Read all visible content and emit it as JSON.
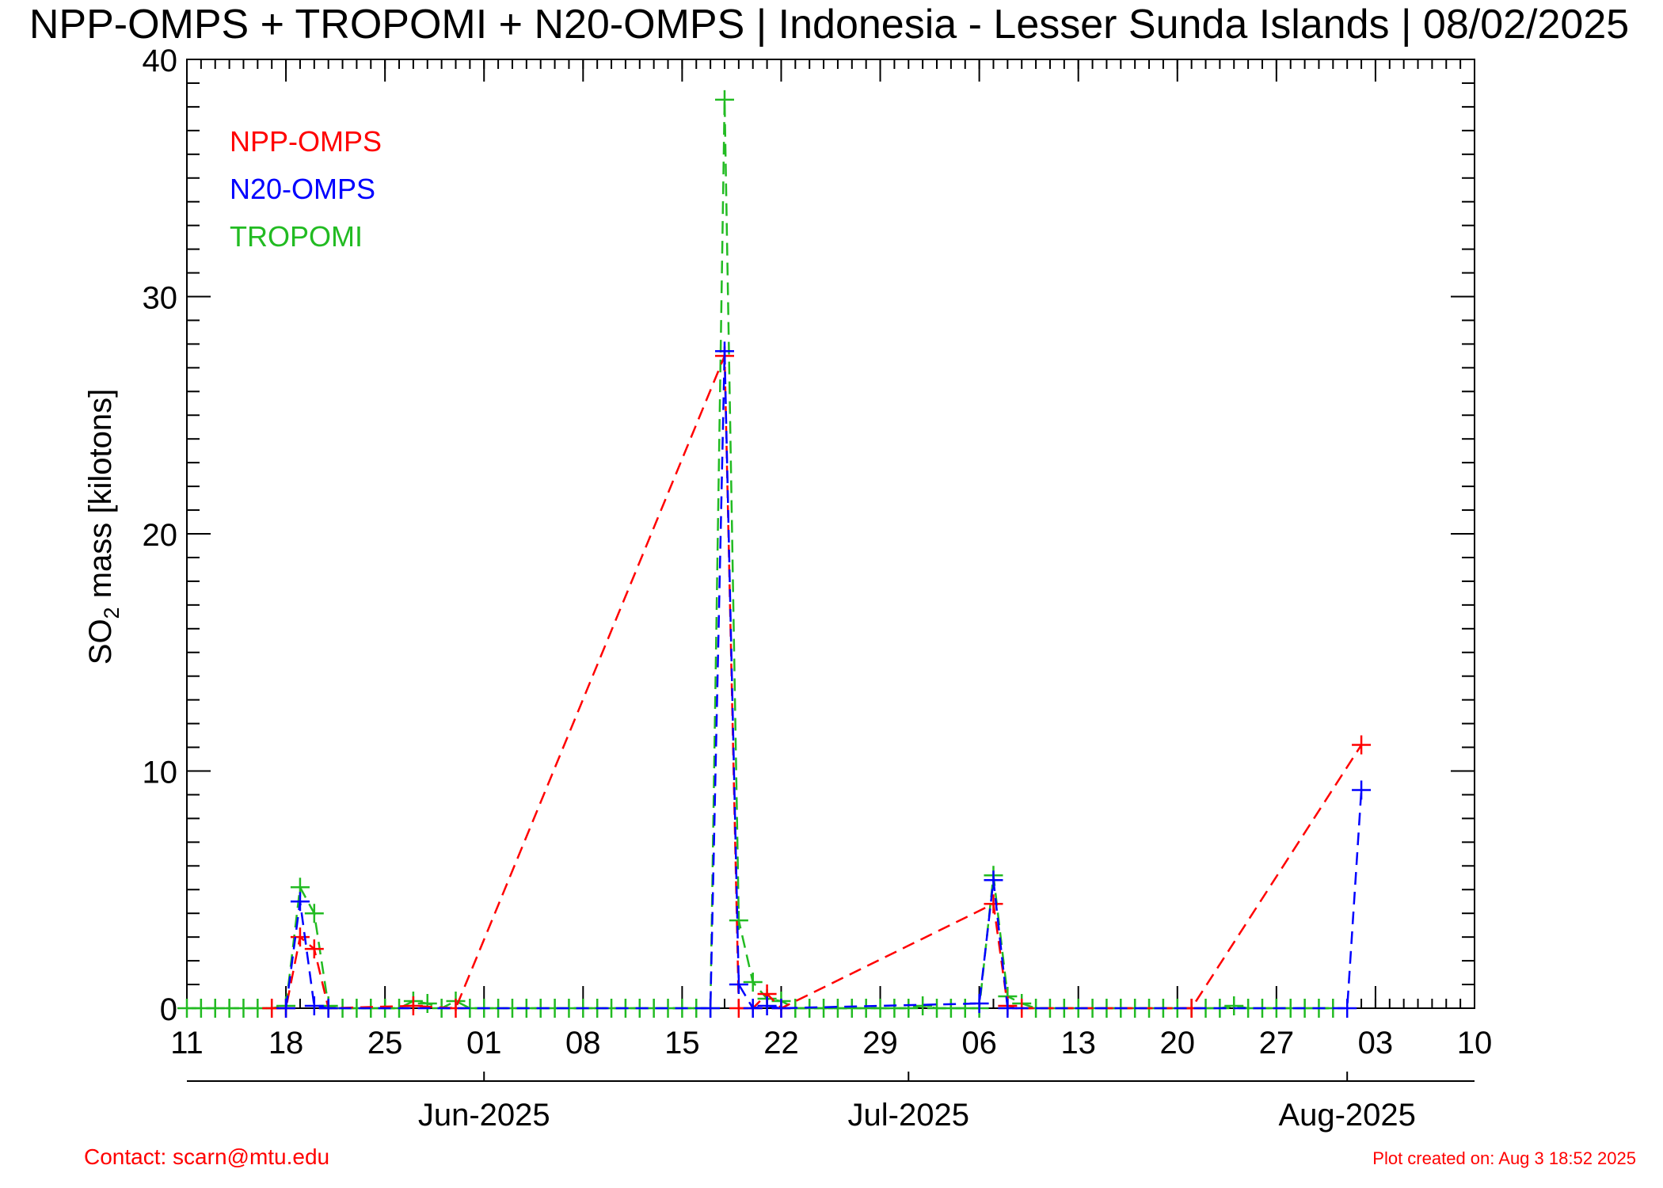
{
  "chart_data": {
    "type": "line",
    "title": "NPP-OMPS + TROPOMI + N20-OMPS | Indonesia - Lesser Sunda Islands | 08/02/2025",
    "ylabel_main": "SO",
    "ylabel_sub": "2",
    "ylabel_rest": " mass [kilotons]",
    "ylim": [
      0,
      40
    ],
    "y_ticks": [
      "0",
      "10",
      "20",
      "30",
      "40"
    ],
    "x_range": [
      "2025-05-11",
      "2025-08-10"
    ],
    "x_day_ticks": [
      {
        "date": "2025-05-11",
        "label": "11"
      },
      {
        "date": "2025-05-18",
        "label": "18"
      },
      {
        "date": "2025-05-25",
        "label": "25"
      },
      {
        "date": "2025-06-01",
        "label": "01"
      },
      {
        "date": "2025-06-08",
        "label": "08"
      },
      {
        "date": "2025-06-15",
        "label": "15"
      },
      {
        "date": "2025-06-22",
        "label": "22"
      },
      {
        "date": "2025-06-29",
        "label": "29"
      },
      {
        "date": "2025-07-06",
        "label": "06"
      },
      {
        "date": "2025-07-13",
        "label": "13"
      },
      {
        "date": "2025-07-20",
        "label": "20"
      },
      {
        "date": "2025-07-27",
        "label": "27"
      },
      {
        "date": "2025-08-03",
        "label": "03"
      },
      {
        "date": "2025-08-10",
        "label": "10"
      }
    ],
    "x_month_ticks": [
      {
        "date": "2025-06-01",
        "label": "Jun-2025"
      },
      {
        "date": "2025-07-01",
        "label": "Jul-2025"
      },
      {
        "date": "2025-08-01",
        "label": "Aug-2025"
      }
    ],
    "legend_position": "top-left",
    "grid": false,
    "series": [
      {
        "name": "NPP-OMPS",
        "color": "#ff0000",
        "points": [
          [
            "2025-05-17",
            0.0
          ],
          [
            "2025-05-18",
            0.0
          ],
          [
            "2025-05-19",
            3.0
          ],
          [
            "2025-05-20",
            2.5
          ],
          [
            "2025-05-21",
            0.0
          ],
          [
            "2025-05-27",
            0.1
          ],
          [
            "2025-05-30",
            0.0
          ],
          [
            "2025-06-18",
            27.5
          ],
          [
            "2025-06-19",
            0.0
          ],
          [
            "2025-06-20",
            0.0
          ],
          [
            "2025-06-21",
            0.6
          ],
          [
            "2025-06-22",
            0.0
          ],
          [
            "2025-07-07",
            4.4
          ],
          [
            "2025-07-08",
            0.1
          ],
          [
            "2025-07-09",
            0.0
          ],
          [
            "2025-07-21",
            0.0
          ],
          [
            "2025-08-02",
            11.1
          ]
        ]
      },
      {
        "name": "N20-OMPS",
        "color": "#0000ff",
        "points": [
          [
            "2025-05-18",
            0.0
          ],
          [
            "2025-05-19",
            4.5
          ],
          [
            "2025-05-20",
            0.1
          ],
          [
            "2025-05-21",
            0.0
          ],
          [
            "2025-06-17",
            0.0
          ],
          [
            "2025-06-18",
            27.7
          ],
          [
            "2025-06-19",
            1.0
          ],
          [
            "2025-06-20",
            0.0
          ],
          [
            "2025-06-21",
            0.1
          ],
          [
            "2025-06-22",
            0.0
          ],
          [
            "2025-07-06",
            0.2
          ],
          [
            "2025-07-07",
            5.4
          ],
          [
            "2025-07-08",
            0.0
          ],
          [
            "2025-08-01",
            0.0
          ],
          [
            "2025-08-02",
            9.2
          ]
        ]
      },
      {
        "name": "TROPOMI",
        "color": "#22bb22",
        "points": [
          [
            "2025-05-11",
            0.0
          ],
          [
            "2025-05-12",
            0.0
          ],
          [
            "2025-05-13",
            0.0
          ],
          [
            "2025-05-14",
            0.0
          ],
          [
            "2025-05-15",
            0.0
          ],
          [
            "2025-05-16",
            0.0
          ],
          [
            "2025-05-17",
            0.0
          ],
          [
            "2025-05-18",
            0.1
          ],
          [
            "2025-05-19",
            5.1
          ],
          [
            "2025-05-20",
            4.0
          ],
          [
            "2025-05-21",
            0.1
          ],
          [
            "2025-05-22",
            0.0
          ],
          [
            "2025-05-23",
            0.0
          ],
          [
            "2025-05-24",
            0.0
          ],
          [
            "2025-05-25",
            0.0
          ],
          [
            "2025-05-26",
            0.0
          ],
          [
            "2025-05-27",
            0.3
          ],
          [
            "2025-05-28",
            0.2
          ],
          [
            "2025-05-29",
            0.0
          ],
          [
            "2025-05-30",
            0.3
          ],
          [
            "2025-05-31",
            0.0
          ],
          [
            "2025-06-01",
            0.0
          ],
          [
            "2025-06-02",
            0.0
          ],
          [
            "2025-06-03",
            0.0
          ],
          [
            "2025-06-04",
            0.0
          ],
          [
            "2025-06-05",
            0.0
          ],
          [
            "2025-06-06",
            0.0
          ],
          [
            "2025-06-07",
            0.0
          ],
          [
            "2025-06-08",
            0.0
          ],
          [
            "2025-06-09",
            0.0
          ],
          [
            "2025-06-10",
            0.0
          ],
          [
            "2025-06-11",
            0.0
          ],
          [
            "2025-06-12",
            0.0
          ],
          [
            "2025-06-13",
            0.0
          ],
          [
            "2025-06-14",
            0.0
          ],
          [
            "2025-06-15",
            0.0
          ],
          [
            "2025-06-16",
            0.0
          ],
          [
            "2025-06-17",
            0.0
          ],
          [
            "2025-06-18",
            38.3
          ],
          [
            "2025-06-19",
            3.7
          ],
          [
            "2025-06-20",
            1.1
          ],
          [
            "2025-06-21",
            0.4
          ],
          [
            "2025-06-22",
            0.3
          ],
          [
            "2025-06-23",
            0.0
          ],
          [
            "2025-06-24",
            0.0
          ],
          [
            "2025-06-25",
            0.0
          ],
          [
            "2025-06-26",
            0.0
          ],
          [
            "2025-06-27",
            0.0
          ],
          [
            "2025-06-28",
            0.0
          ],
          [
            "2025-06-29",
            0.0
          ],
          [
            "2025-06-30",
            0.0
          ],
          [
            "2025-07-01",
            0.0
          ],
          [
            "2025-07-02",
            0.1
          ],
          [
            "2025-07-03",
            0.0
          ],
          [
            "2025-07-04",
            0.0
          ],
          [
            "2025-07-05",
            0.0
          ],
          [
            "2025-07-06",
            0.0
          ],
          [
            "2025-07-07",
            5.6
          ],
          [
            "2025-07-08",
            0.5
          ],
          [
            "2025-07-09",
            0.2
          ],
          [
            "2025-07-10",
            0.0
          ],
          [
            "2025-07-11",
            0.0
          ],
          [
            "2025-07-12",
            0.0
          ],
          [
            "2025-07-13",
            0.0
          ],
          [
            "2025-07-14",
            0.0
          ],
          [
            "2025-07-15",
            0.0
          ],
          [
            "2025-07-16",
            0.0
          ],
          [
            "2025-07-17",
            0.0
          ],
          [
            "2025-07-18",
            0.0
          ],
          [
            "2025-07-19",
            0.0
          ],
          [
            "2025-07-20",
            0.0
          ],
          [
            "2025-07-21",
            0.0
          ],
          [
            "2025-07-22",
            0.0
          ],
          [
            "2025-07-23",
            0.0
          ],
          [
            "2025-07-24",
            0.1
          ],
          [
            "2025-07-25",
            0.0
          ],
          [
            "2025-07-26",
            0.0
          ],
          [
            "2025-07-27",
            0.0
          ],
          [
            "2025-07-28",
            0.0
          ],
          [
            "2025-07-29",
            0.0
          ],
          [
            "2025-07-30",
            0.0
          ],
          [
            "2025-07-31",
            0.0
          ]
        ]
      }
    ]
  },
  "footer": {
    "contact": "Contact: scarn@mtu.edu",
    "created": "Plot created on: Aug  3 18:52 2025"
  }
}
